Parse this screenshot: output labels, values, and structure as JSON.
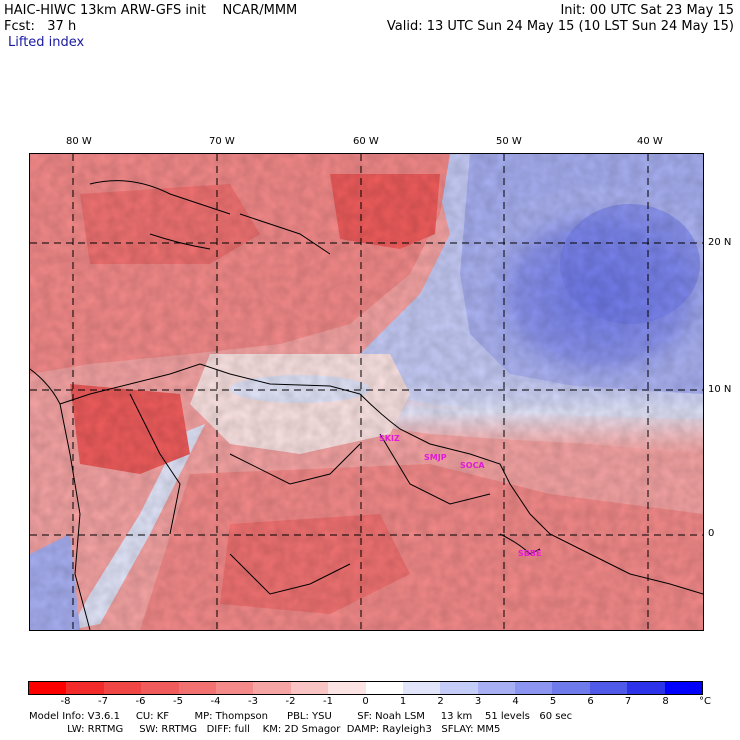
{
  "header": {
    "line1_left": "HAIC-HIWC 13km ARW-GFS init    NCAR/MMM",
    "line1_right": "Init: 00 UTC Sat 23 May 15",
    "line2_left": "Fcst:   37 h",
    "line2_right": "Valid: 13 UTC Sun 24 May 15 (10 LST Sun 24 May 15)",
    "field_name": "Lifted index"
  },
  "map": {
    "lon_labels": [
      "80 W",
      "70 W",
      "60 W",
      "50 W",
      "40 W"
    ],
    "lat_labels": [
      "20 N",
      "10 N",
      "0"
    ],
    "stations": [
      "SKIZ",
      "SMJP",
      "SOCA",
      "SBBE"
    ],
    "colors": {
      "land_outline": "#000000",
      "grid": "#000000"
    }
  },
  "colorbar": {
    "labels": [
      "-8",
      "-7",
      "-6",
      "-5",
      "-4",
      "-3",
      "-2",
      "-1",
      "0",
      "1",
      "2",
      "3",
      "4",
      "5",
      "6",
      "7",
      "8"
    ],
    "unit": "°C",
    "colors": [
      "#ff0000",
      "#f22a2a",
      "#f04646",
      "#f05c5c",
      "#f27272",
      "#f58a8a",
      "#f7a4a4",
      "#fbc4c4",
      "#fde4e4",
      "#ffffff",
      "#e3e6fb",
      "#c6ccf8",
      "#a8b0f3",
      "#8c95ef",
      "#6f7aeb",
      "#505ae8",
      "#2c33e8",
      "#0000ff"
    ]
  },
  "model_info": {
    "line1": "Model Info: V3.6.1     CU: KF        MP: Thompson      PBL: YSU        SF: Noah LSM     13 km    51 levels   60 sec",
    "line2": "            LW: RRTMG     SW: RRTMG   DIFF: full    KM: 2D Smagor  DAMP: Rayleigh3   SFLAY: MM5"
  }
}
